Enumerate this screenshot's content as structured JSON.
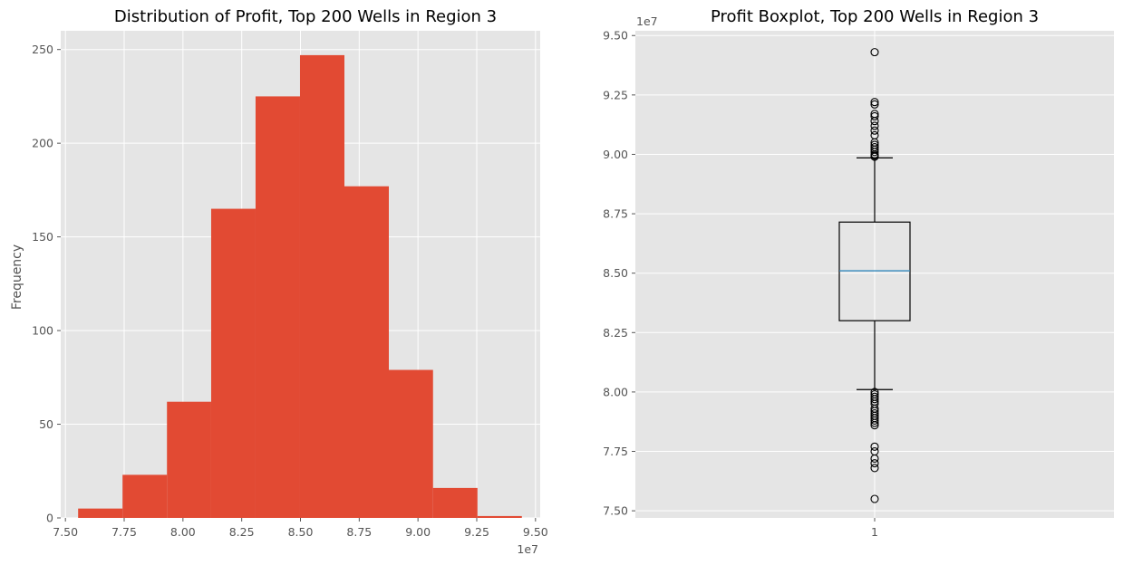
{
  "chart_data": [
    {
      "type": "bar",
      "subtype": "histogram",
      "title": "Distribution of Profit, Top 200 Wells in Region 3",
      "xlabel": "",
      "ylabel": "Frequency",
      "x_offset_label": "1e7",
      "bin_edges": [
        7.554,
        7.743,
        7.932,
        8.12,
        8.309,
        8.498,
        8.687,
        8.876,
        9.064,
        9.253,
        9.442
      ],
      "values": [
        5,
        23,
        62,
        165,
        225,
        247,
        177,
        79,
        16,
        1
      ],
      "xlim": [
        7.48,
        9.52
      ],
      "ylim": [
        0,
        260
      ],
      "xticks": [
        7.5,
        7.75,
        8.0,
        8.25,
        8.5,
        8.75,
        9.0,
        9.25,
        9.5
      ],
      "xtick_labels": [
        "7.50",
        "7.75",
        "8.00",
        "8.25",
        "8.50",
        "8.75",
        "9.00",
        "9.25",
        "9.50"
      ],
      "yticks": [
        0,
        50,
        100,
        150,
        200,
        250
      ],
      "ytick_labels": [
        "0",
        "50",
        "100",
        "150",
        "200",
        "250"
      ],
      "grid": true,
      "bar_color": "#e24a33"
    },
    {
      "type": "box",
      "title": "Profit Boxplot, Top 200 Wells in Region 3",
      "xlabel": "",
      "ylabel": "",
      "y_offset_label": "1e7",
      "categories": [
        "1"
      ],
      "box": {
        "q1": 8.3,
        "median": 8.51,
        "q3": 8.715,
        "whisker_low": 8.01,
        "whisker_high": 8.985
      },
      "outliers": [
        9.43,
        9.22,
        9.21,
        9.17,
        9.16,
        9.14,
        9.12,
        9.1,
        9.08,
        9.05,
        9.04,
        9.03,
        9.02,
        9.01,
        9.0,
        8.995,
        8.99,
        8.0,
        7.99,
        7.98,
        7.97,
        7.96,
        7.95,
        7.93,
        7.92,
        7.91,
        7.9,
        7.89,
        7.88,
        7.87,
        7.86,
        7.77,
        7.75,
        7.72,
        7.7,
        7.68,
        7.55
      ],
      "ylim": [
        7.47,
        9.52
      ],
      "yticks": [
        7.5,
        7.75,
        8.0,
        8.25,
        8.5,
        8.75,
        9.0,
        9.25,
        9.5
      ],
      "ytick_labels": [
        "7.50",
        "7.75",
        "8.00",
        "8.25",
        "8.50",
        "8.75",
        "9.00",
        "9.25",
        "9.50"
      ],
      "grid": true,
      "median_color": "#348abd"
    }
  ],
  "colors": {
    "axes_bg": "#e5e5e5",
    "grid": "#ffffff",
    "text": "#555555",
    "title": "#000000"
  }
}
